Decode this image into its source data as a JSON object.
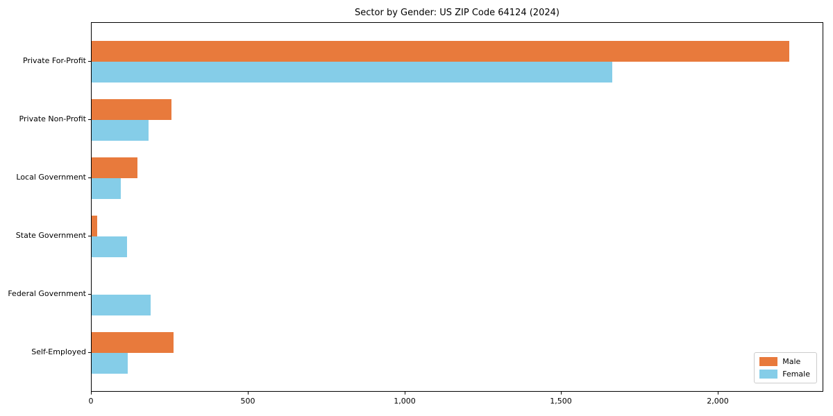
{
  "chart_data": {
    "type": "bar",
    "orientation": "horizontal",
    "title": "Sector by Gender: US ZIP Code 64124 (2024)",
    "categories": [
      "Private For-Profit",
      "Private Non-Profit",
      "Local Government",
      "State Government",
      "Federal Government",
      "Self-Employed"
    ],
    "series": [
      {
        "name": "Male",
        "color": "#e87a3c",
        "values": [
          2225,
          254,
          146,
          17,
          0,
          262
        ]
      },
      {
        "name": "Female",
        "color": "#85cde8",
        "values": [
          1661,
          182,
          94,
          113,
          189,
          115
        ]
      }
    ],
    "xlabel": "",
    "ylabel": "",
    "xlim": [
      0,
      2336
    ],
    "xticks": [
      0,
      500,
      1000,
      1500,
      2000
    ],
    "xtick_labels": [
      "0",
      "500",
      "1,000",
      "1,500",
      "2,000"
    ],
    "grid": false,
    "legend_position": "lower right",
    "frame_color": "#000000",
    "background_color": "#ffffff"
  }
}
